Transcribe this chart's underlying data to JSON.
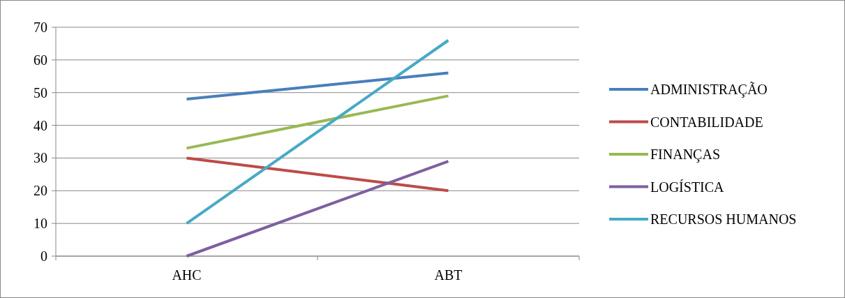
{
  "chart_data": {
    "type": "line",
    "categories": [
      "AHC",
      "ABT"
    ],
    "series": [
      {
        "name": "ADMINISTRAÇÃO",
        "color": "#4a7ebb",
        "values": [
          48,
          56
        ]
      },
      {
        "name": "CONTABILIDADE",
        "color": "#be4b48",
        "values": [
          30,
          20
        ]
      },
      {
        "name": "FINANÇAS",
        "color": "#98b954",
        "values": [
          33,
          49
        ]
      },
      {
        "name": "LOGÍSTICA",
        "color": "#7d60a0",
        "values": [
          0,
          29
        ]
      },
      {
        "name": "RECURSOS HUMANOS",
        "color": "#46aac5",
        "values": [
          10,
          66
        ]
      }
    ],
    "ylim": [
      0,
      70
    ],
    "yticks": [
      0,
      10,
      20,
      30,
      40,
      50,
      60,
      70
    ],
    "grid": "y",
    "legend": "right",
    "marker": "none",
    "line_style": "solid"
  }
}
